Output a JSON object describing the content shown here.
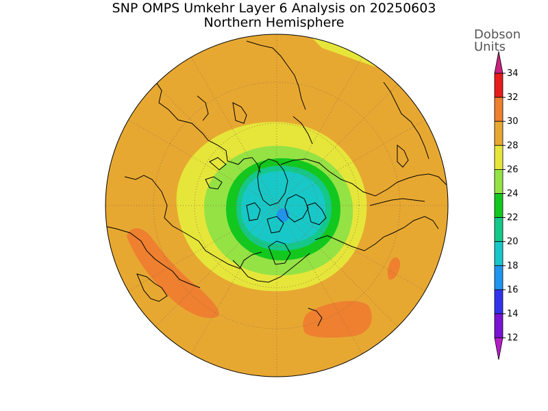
{
  "title": "SNP OMPS Umkehr Layer 6 Analysis on 20250603",
  "subtitle": "Northern Hemisphere",
  "legend": {
    "unit_line1": "Dobson",
    "unit_line2": "Units",
    "ticks": [
      "34",
      "32",
      "30",
      "28",
      "26",
      "24",
      "22",
      "20",
      "18",
      "16",
      "14",
      "12"
    ],
    "colors": {
      "above_34": "#c8237e",
      "32_34": "#e81c1c",
      "30_32": "#ee8030",
      "28_30": "#e7a832",
      "26_28": "#e6e63a",
      "24_26": "#95e245",
      "22_24": "#12c81e",
      "20_22": "#14c88a",
      "18_20": "#18c8c8",
      "16_18": "#1e96f0",
      "14_16": "#3232ee",
      "12_14": "#7814d2",
      "below_12": "#b41ec8"
    }
  }
}
